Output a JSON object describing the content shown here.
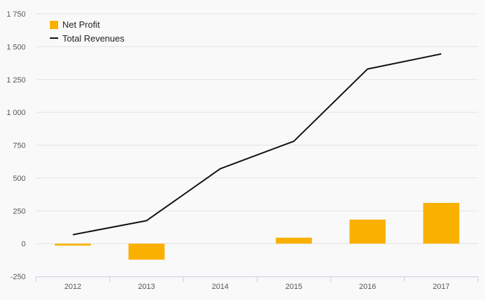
{
  "chart_data": {
    "type": "bar",
    "categories": [
      "2012",
      "2013",
      "2014",
      "2015",
      "2016",
      "2017"
    ],
    "series": [
      {
        "name": "Net Profit",
        "type": "bar",
        "color": "#f9b000",
        "values": [
          -15,
          -122,
          0,
          45,
          183,
          310
        ]
      },
      {
        "name": "Total Revenues",
        "type": "line",
        "color": "#111111",
        "values": [
          68,
          175,
          570,
          780,
          1330,
          1445
        ]
      }
    ],
    "ylim": [
      -250,
      1750
    ],
    "yticks": [
      -250,
      0,
      250,
      500,
      750,
      1000,
      1250,
      1500,
      1750
    ],
    "ytick_labels": [
      "-250",
      "0",
      "250",
      "500",
      "750",
      "1 000",
      "1 250",
      "1 500",
      "1 750"
    ],
    "grid": true,
    "legend": "top-left"
  }
}
